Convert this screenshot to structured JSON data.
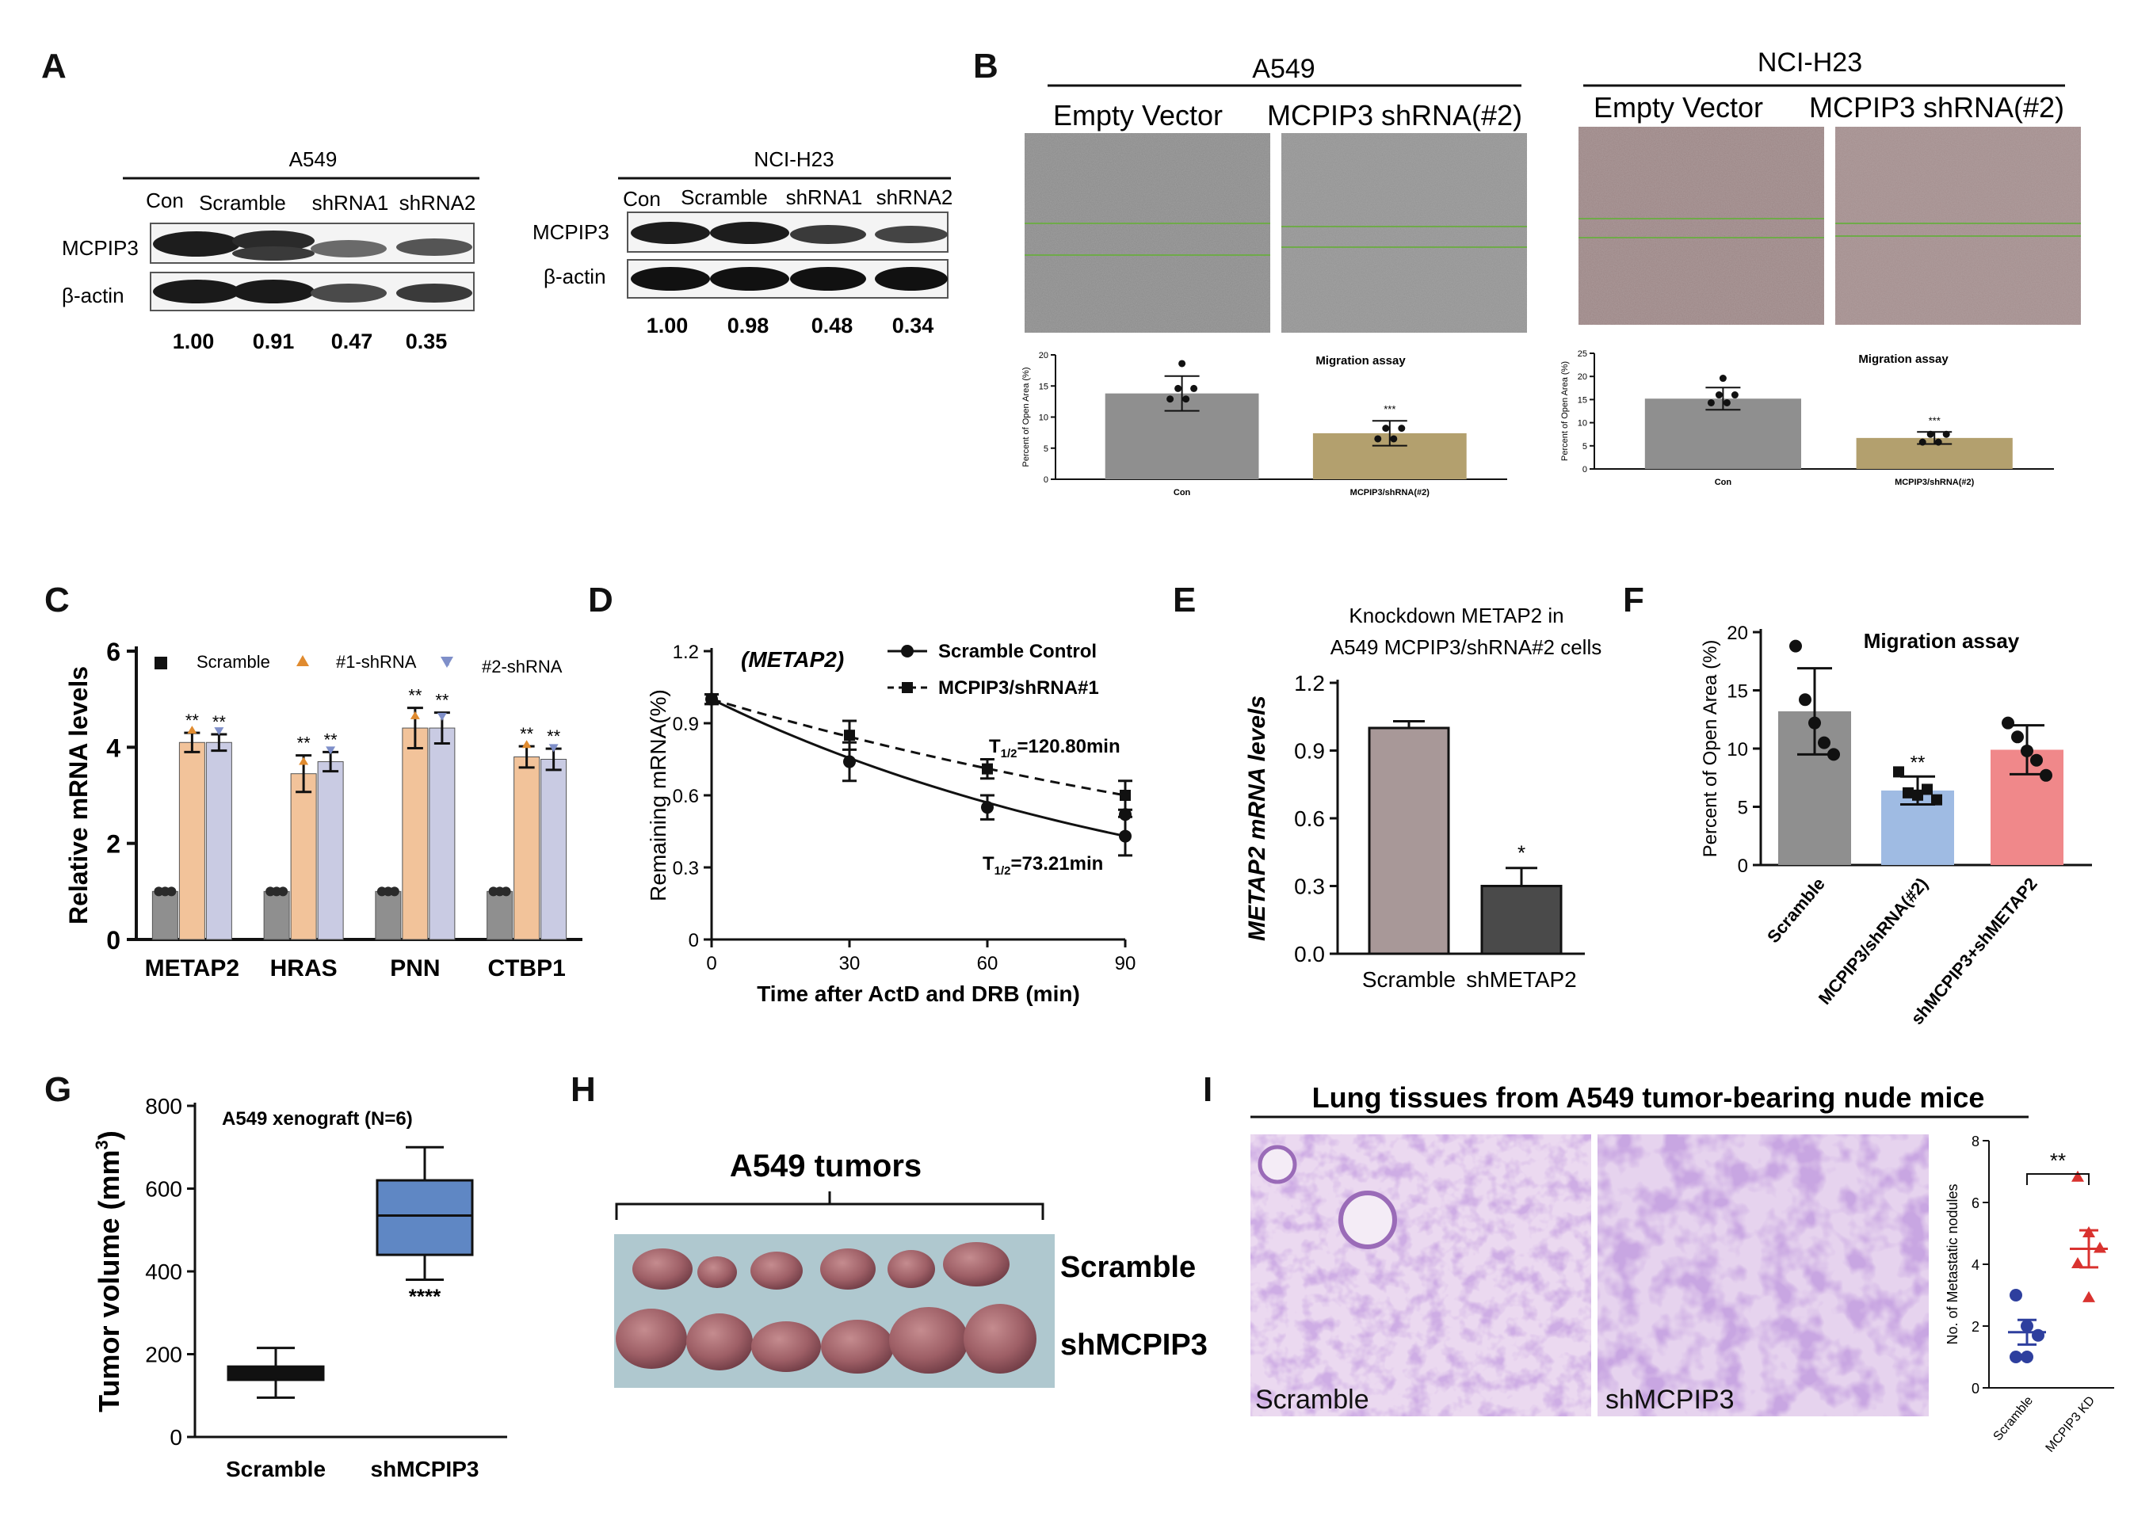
{
  "panel_letters": [
    "A",
    "B",
    "C",
    "D",
    "E",
    "F",
    "G",
    "H",
    "I"
  ],
  "colors": {
    "gray_bar": "#8f8f8f",
    "tan_bar": "#b3a06e",
    "orange_bar": "#f2c39a",
    "lavender_bar": "#c9cbe3",
    "dark_bar": "#4a4a4a",
    "blue_bar": "#9fbbe3",
    "pink_bar": "#f0888a",
    "box_blue": "#5f87c4",
    "histology_purple": "#a77bc2",
    "scatter_blue": "#2e3f9e",
    "scatter_red": "#d9322f"
  },
  "panelA": {
    "blot1": {
      "cell_line": "A549",
      "lanes": [
        "Con",
        "Scramble",
        "shRNA1",
        "shRNA2"
      ],
      "rows": [
        "MCPIP3",
        "β-actin"
      ],
      "values": [
        "1.00",
        "0.91",
        "0.47",
        "0.35"
      ]
    },
    "blot2": {
      "cell_line": "NCI-H23",
      "lanes": [
        "Con",
        "Scramble",
        "shRNA1",
        "shRNA2"
      ],
      "rows": [
        "MCPIP3",
        "β-actin"
      ],
      "values": [
        "1.00",
        "0.98",
        "0.48",
        "0.34"
      ]
    }
  },
  "panelB": {
    "left": {
      "cell_line": "A549",
      "col_labels": [
        "Empty Vector",
        "MCPIP3 shRNA(#2)"
      ],
      "chart_title": "Migration assay",
      "ylabel": "Percent of Open Area (%)",
      "yticks": [
        "0",
        "5",
        "10",
        "15",
        "20"
      ],
      "categories": [
        "Con",
        "MCPIP3/shRNA(#2)"
      ],
      "values": [
        13.8,
        7.4
      ],
      "errors": [
        2.8,
        2.0
      ],
      "sig": "***"
    },
    "right": {
      "cell_line": "NCI-H23",
      "col_labels": [
        "Empty Vector",
        "MCPIP3 shRNA(#2)"
      ],
      "chart_title": "Migration assay",
      "ylabel": "Percent of Open Area (%)",
      "yticks": [
        "0",
        "5",
        "10",
        "15",
        "20",
        "25"
      ],
      "categories": [
        "Con",
        "MCPIP3/shRNA(#2)"
      ],
      "values": [
        15.2,
        6.7
      ],
      "errors": [
        2.4,
        1.3
      ],
      "sig": "***"
    }
  },
  "chart_data": [
    {
      "panel": "C",
      "type": "bar",
      "title": "",
      "ylabel": "Relative mRNA levels",
      "ylim": [
        0,
        6
      ],
      "yticks": [
        "0",
        "2",
        "4",
        "6"
      ],
      "categories": [
        "METAP2",
        "HRAS",
        "PNN",
        "CTBP1"
      ],
      "legend": [
        "Scramble",
        "#1-shRNA",
        "#2-shRNA"
      ],
      "series": [
        {
          "name": "Scramble",
          "values": [
            1.0,
            1.0,
            1.0,
            1.0
          ],
          "errors": [
            0.05,
            0.05,
            0.05,
            0.05
          ]
        },
        {
          "name": "#1-shRNA",
          "values": [
            4.1,
            3.45,
            4.4,
            3.8
          ],
          "errors": [
            0.2,
            0.38,
            0.42,
            0.22
          ]
        },
        {
          "name": "#2-shRNA",
          "values": [
            4.1,
            3.7,
            4.4,
            3.75
          ],
          "errors": [
            0.17,
            0.2,
            0.32,
            0.22
          ]
        }
      ],
      "sig": "**"
    },
    {
      "panel": "D",
      "type": "line",
      "title": "(METAP2)",
      "xlabel": "Time after ActD and DRB (min)",
      "ylabel": "Remaining mRNA(%)",
      "xlim": [
        0,
        90
      ],
      "ylim": [
        0,
        1.2
      ],
      "xticks": [
        "0",
        "30",
        "60",
        "90"
      ],
      "yticks": [
        "0",
        "0.3",
        "0.6",
        "0.9",
        "1.2"
      ],
      "series": [
        {
          "name": "Scramble Control",
          "x": [
            0,
            30,
            60,
            90
          ],
          "y": [
            1.0,
            0.74,
            0.55,
            0.43
          ],
          "errors": [
            0.02,
            0.08,
            0.05,
            0.08
          ],
          "extra_point": [
            90,
            0.52
          ],
          "half_life": "T1/2=73.21min"
        },
        {
          "name": "MCPIP3/shRNA#1",
          "x": [
            0,
            30,
            60,
            90
          ],
          "y": [
            1.0,
            0.85,
            0.71,
            0.6
          ],
          "errors": [
            0.02,
            0.06,
            0.04,
            0.06
          ],
          "half_life": "T1/2=120.80min"
        }
      ],
      "half_life_labels": {
        "upper": "120.80min",
        "lower": "73.21min",
        "prefix": "T",
        "sub": "1/2",
        "eq": "="
      }
    },
    {
      "panel": "E",
      "type": "bar",
      "title": "Knockdown METAP2  in A549 MCPIP3/shRNA#2 cells",
      "title_lines": [
        "Knockdown METAP2  in",
        "A549 MCPIP3/shRNA#2 cells"
      ],
      "ylabel": "METAP2 mRNA levels",
      "ylim": [
        0,
        1.2
      ],
      "yticks": [
        "0.0",
        "0.3",
        "0.6",
        "0.9",
        "1.2"
      ],
      "categories": [
        "Scramble",
        "shMETAP2"
      ],
      "values": [
        1.0,
        0.3
      ],
      "errors": [
        0.03,
        0.08
      ],
      "sig": "*"
    },
    {
      "panel": "F",
      "type": "bar",
      "title": "Migration assay",
      "ylabel": "Percent of Open Area (%)",
      "ylim": [
        0,
        20
      ],
      "yticks": [
        "0",
        "5",
        "10",
        "15",
        "20"
      ],
      "categories": [
        "Scramble",
        "MCPIP3/shRNA(#2)",
        "shMCPIP3+shMETAP2"
      ],
      "values": [
        13.2,
        6.4,
        9.9
      ],
      "errors": [
        3.7,
        1.2,
        2.1
      ],
      "points": [
        [
          18.8,
          14.2,
          12.2,
          10.5,
          9.5
        ],
        [
          8.0,
          6.2,
          6.0,
          6.5,
          5.6
        ],
        [
          12.2,
          11.0,
          9.8,
          9.0,
          7.7
        ]
      ],
      "sig": [
        "",
        "**",
        ""
      ]
    },
    {
      "panel": "G",
      "type": "box",
      "title": "A549 xenograft (N=6)",
      "ylabel": "Tumor volume (mm3)",
      "ylim": [
        0,
        800
      ],
      "yticks": [
        "0",
        "200",
        "400",
        "600",
        "800"
      ],
      "categories": [
        "Scramble",
        "shMCPIP3"
      ],
      "boxes": [
        {
          "min": 95,
          "q1": 138,
          "median": 155,
          "q3": 170,
          "max": 215
        },
        {
          "min": 380,
          "q1": 440,
          "median": 535,
          "q3": 620,
          "max": 700
        }
      ],
      "sig": "****"
    },
    {
      "panel": "I",
      "type": "scatter",
      "ylabel": "No. of Metastatic nodules",
      "ylim": [
        0,
        8
      ],
      "yticks": [
        "0",
        "2",
        "4",
        "6",
        "8"
      ],
      "categories": [
        "Scramble",
        "MCPIP3 KD"
      ],
      "points": [
        [
          3.0,
          2.0,
          1.7,
          1.0,
          1.0
        ],
        [
          6.8,
          5.0,
          4.5,
          4.0,
          2.9
        ]
      ],
      "means": [
        1.8,
        4.5
      ],
      "sems": [
        0.4,
        0.6
      ],
      "sig": "**"
    }
  ],
  "panelH": {
    "title": "A549 tumors",
    "row_labels": [
      "Scramble",
      "shMCPIP3"
    ]
  },
  "panelI_images": {
    "title": "Lung tissues from A549 tumor-bearing nude mice",
    "labels": [
      "Scramble",
      "shMCPIP3"
    ]
  },
  "axis_symbols": {
    "tumor_unit_prefix": "Tumor volume (mm",
    "tumor_unit_sup": "3",
    "tumor_unit_suffix": ")"
  }
}
